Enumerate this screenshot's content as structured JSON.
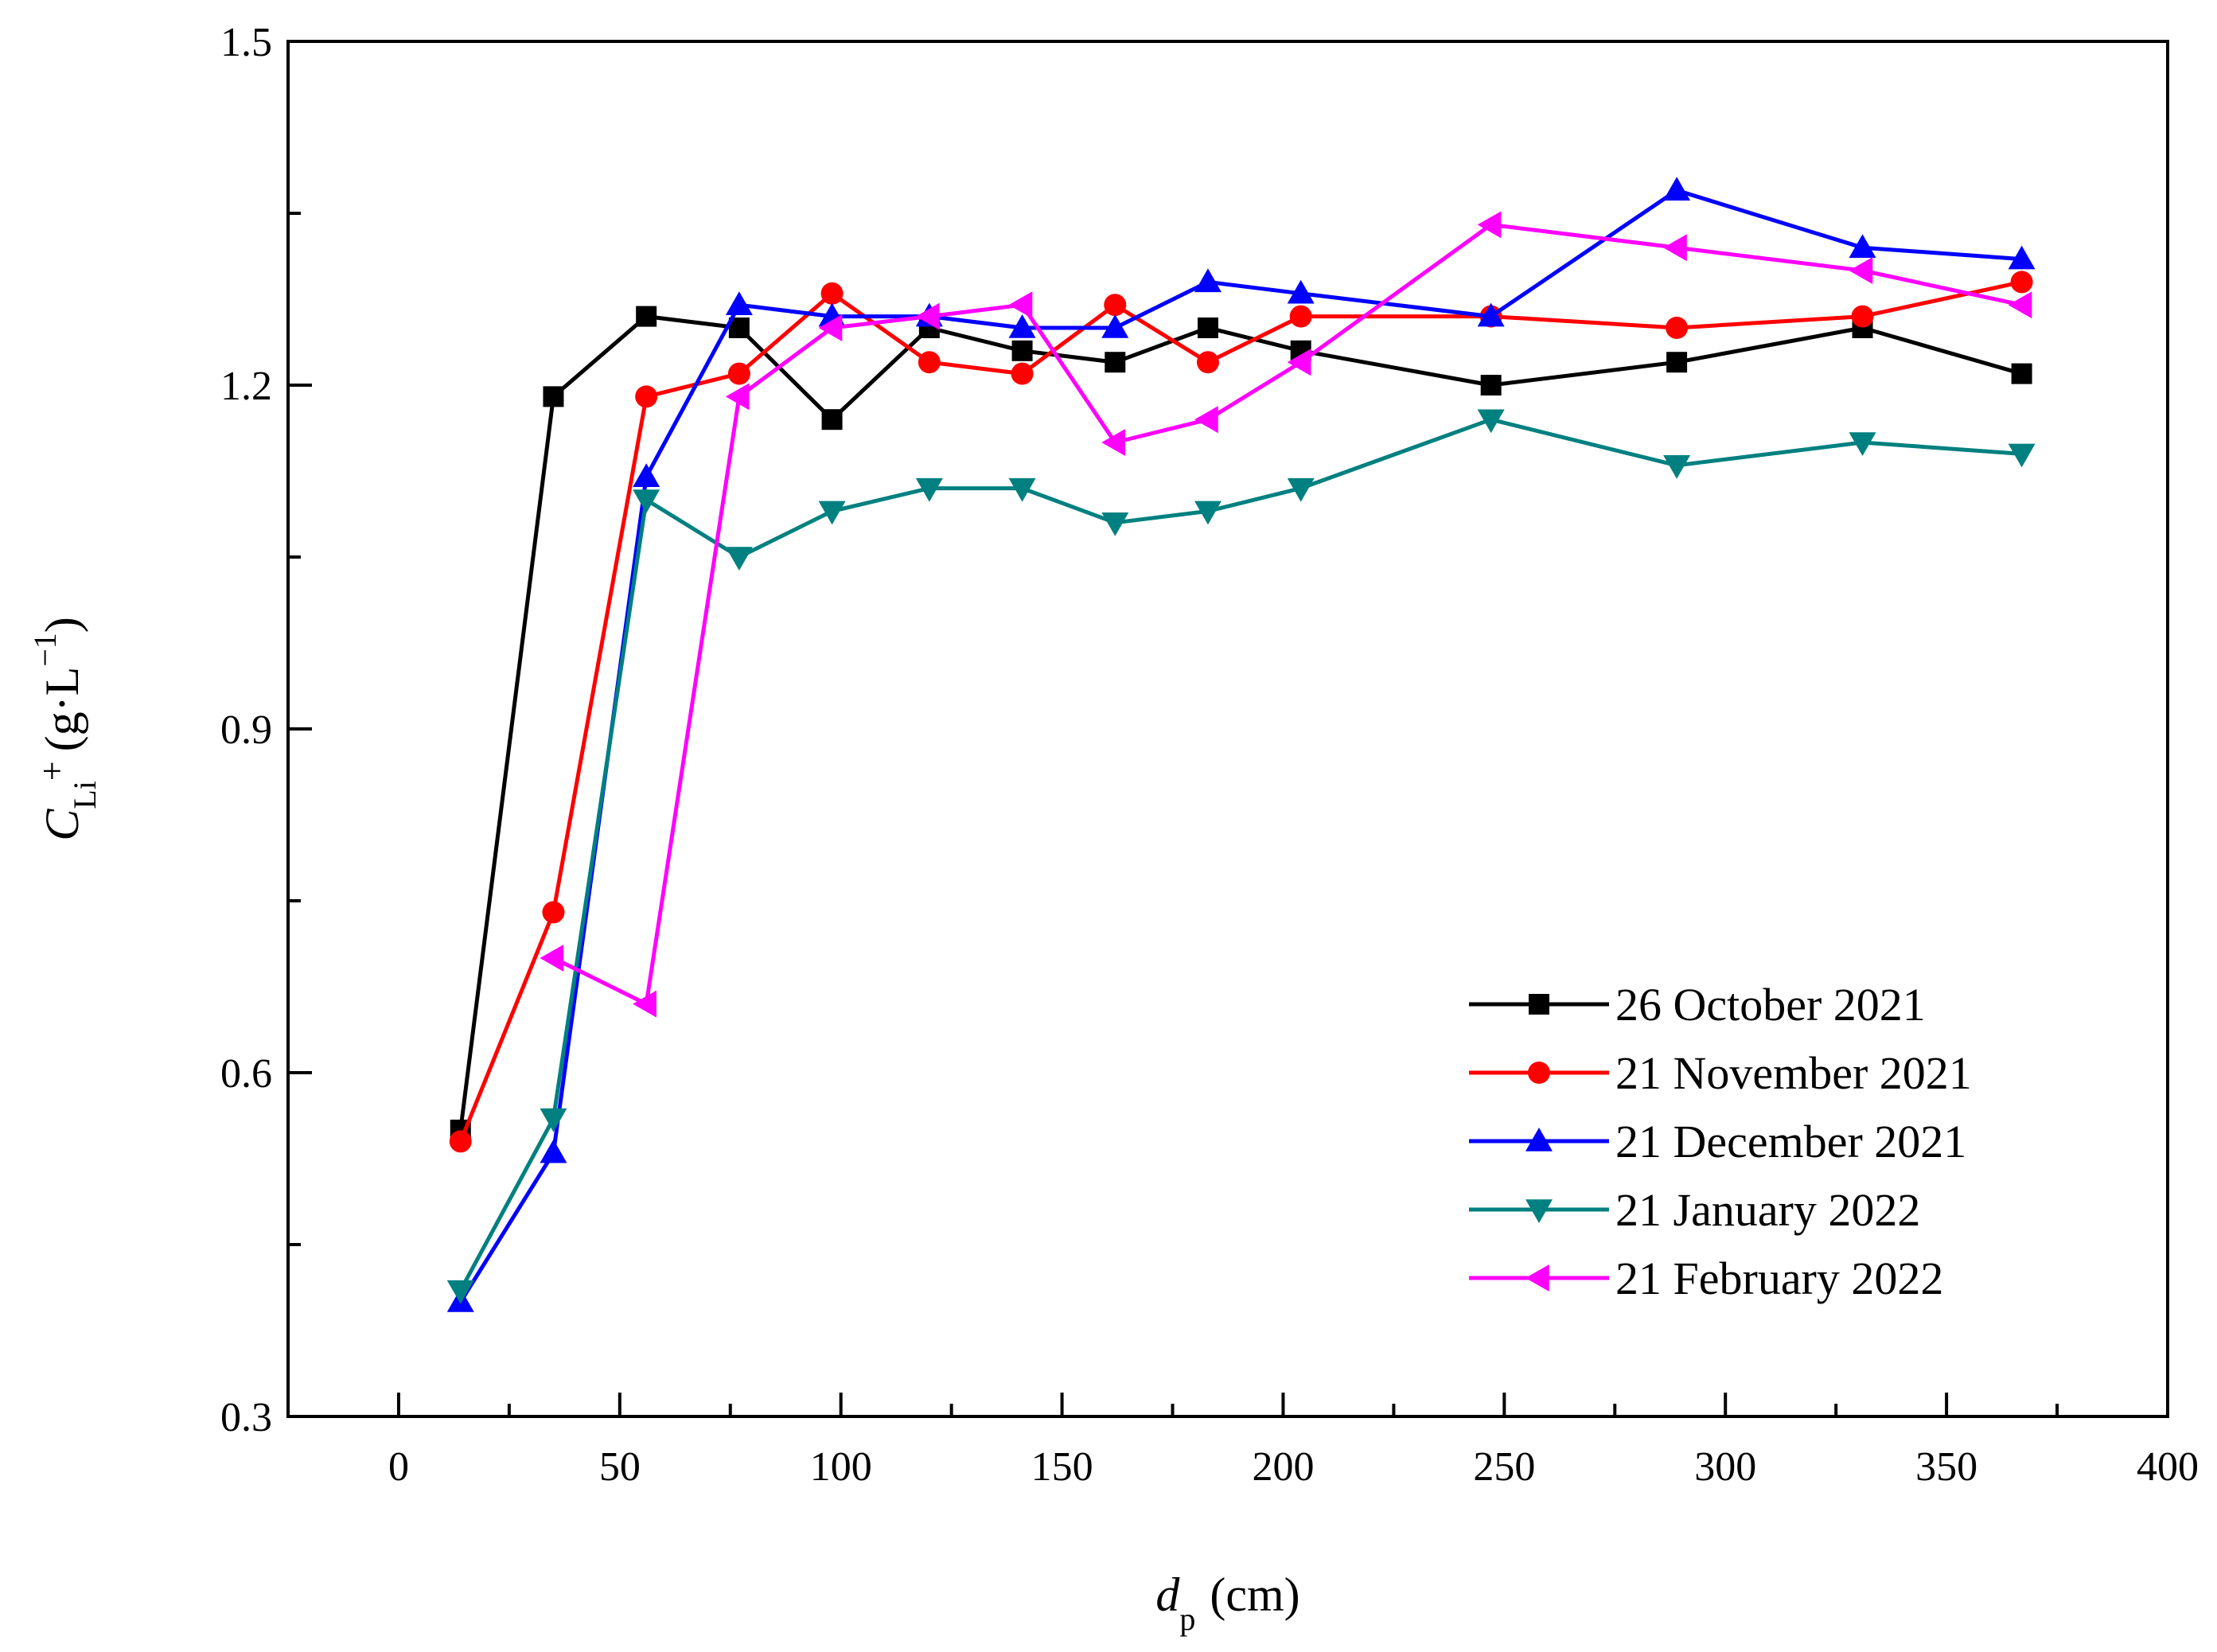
{
  "chart_data": {
    "type": "line",
    "title": "",
    "xlabel": {
      "var": "d",
      "sub": "p",
      "unit": "(cm)"
    },
    "ylabel": {
      "var": "C",
      "sub": "Li",
      "sup_ion": "+",
      "unit_open": "(g·L",
      "unit_exp": "−1",
      "unit_close": ")"
    },
    "xlim": [
      -25,
      400
    ],
    "ylim": [
      0.3,
      1.5
    ],
    "xticks": [
      0,
      50,
      100,
      150,
      200,
      250,
      300,
      350,
      400
    ],
    "xtick_labels": [
      "0",
      "50",
      "100",
      "150",
      "200",
      "250",
      "300",
      "350",
      "400"
    ],
    "yticks": [
      0.3,
      0.6,
      0.9,
      1.2,
      1.5
    ],
    "ytick_labels": [
      "0.3",
      "0.6",
      "0.9",
      "1.2",
      "1.5"
    ],
    "legend_position": "lower-right",
    "series": [
      {
        "name": "26 October 2021",
        "color": "#000000",
        "marker": "square",
        "x": [
          14,
          35,
          56,
          77,
          98,
          120,
          141,
          162,
          183,
          204,
          247,
          289,
          331,
          367
        ],
        "y": [
          0.55,
          1.19,
          1.26,
          1.25,
          1.17,
          1.25,
          1.23,
          1.22,
          1.25,
          1.23,
          1.2,
          1.22,
          1.25,
          1.21
        ]
      },
      {
        "name": "21 November 2021",
        "color": "#ff0000",
        "marker": "circle",
        "x": [
          14,
          35,
          56,
          77,
          98,
          120,
          141,
          162,
          183,
          204,
          247,
          289,
          331,
          367
        ],
        "y": [
          0.54,
          0.74,
          1.19,
          1.21,
          1.28,
          1.22,
          1.21,
          1.27,
          1.22,
          1.26,
          1.26,
          1.25,
          1.26,
          1.29
        ]
      },
      {
        "name": "21 December 2021",
        "color": "#0000ff",
        "marker": "triangle-up",
        "x": [
          14,
          35,
          56,
          77,
          98,
          120,
          141,
          162,
          183,
          204,
          247,
          289,
          331,
          367
        ],
        "y": [
          0.4,
          0.53,
          1.12,
          1.27,
          1.26,
          1.26,
          1.25,
          1.25,
          1.29,
          1.28,
          1.26,
          1.37,
          1.32,
          1.31
        ]
      },
      {
        "name": "21 January 2022",
        "color": "#008080",
        "marker": "triangle-down",
        "x": [
          14,
          35,
          56,
          77,
          98,
          120,
          141,
          162,
          183,
          204,
          247,
          289,
          331,
          367
        ],
        "y": [
          0.41,
          0.56,
          1.1,
          1.05,
          1.09,
          1.11,
          1.11,
          1.08,
          1.09,
          1.11,
          1.17,
          1.13,
          1.15,
          1.14
        ]
      },
      {
        "name": "21 February 2022",
        "color": "#ff00ff",
        "marker": "triangle-left",
        "x": [
          35,
          56,
          77,
          98,
          120,
          141,
          162,
          183,
          204,
          247,
          289,
          331,
          367
        ],
        "y": [
          0.7,
          0.66,
          1.19,
          1.25,
          1.26,
          1.27,
          1.15,
          1.17,
          1.22,
          1.34,
          1.32,
          1.3,
          1.27
        ]
      }
    ]
  }
}
